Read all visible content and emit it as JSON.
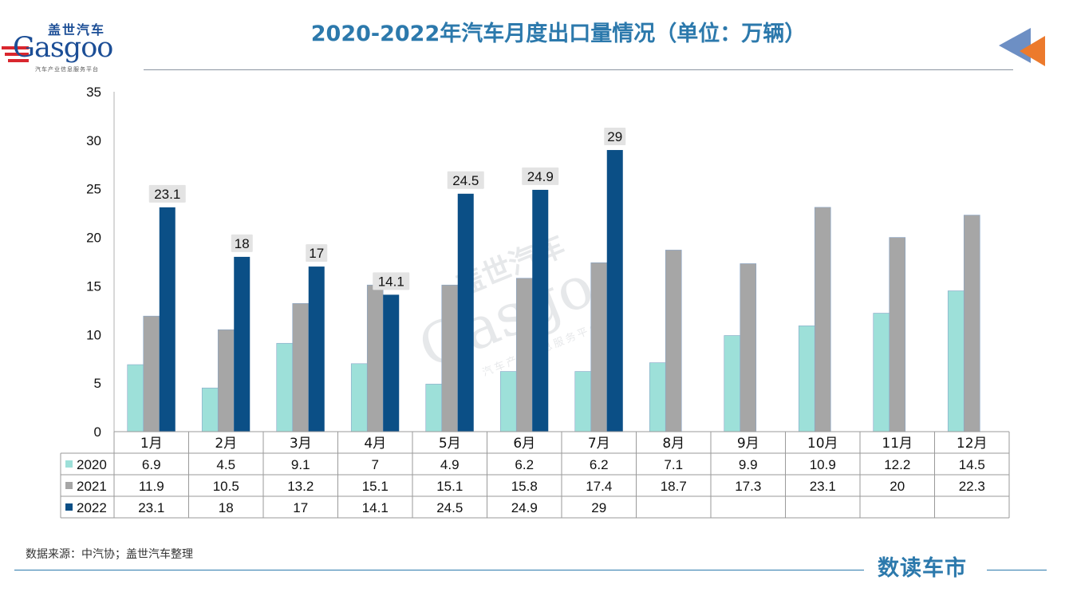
{
  "header": {
    "title": "2020-2022年汽车月度出口量情况（单位：万辆）",
    "logo_cn": "盖世汽车",
    "logo_en": "Gasgoo",
    "logo_sub": "汽车产业信息服务平台"
  },
  "watermark": {
    "cn": "盖世汽车",
    "en": "Gasgoo",
    "sub": "汽车产业信息服务平台"
  },
  "footer": {
    "source": "数据来源：中汽协；盖世汽车整理",
    "brand": "数读车市"
  },
  "colors": {
    "s2020": "#9de0d9",
    "s2021": "#a6a6a6",
    "s2022": "#0b4f86",
    "title": "#2c79ac",
    "logo": "#1c4e96",
    "arrow_blue": "#6d8fc4",
    "arrow_orange": "#ec7a2c"
  },
  "chart_data": {
    "type": "bar",
    "title": "2020-2022年汽车月度出口量情况（单位：万辆）",
    "unit": "万辆",
    "categories": [
      "1月",
      "2月",
      "3月",
      "4月",
      "5月",
      "6月",
      "7月",
      "8月",
      "9月",
      "10月",
      "11月",
      "12月"
    ],
    "series": [
      {
        "name": "2020",
        "values": [
          6.9,
          4.5,
          9.1,
          7,
          4.9,
          6.2,
          6.2,
          7.1,
          9.9,
          10.9,
          12.2,
          14.5
        ]
      },
      {
        "name": "2021",
        "values": [
          11.9,
          10.5,
          13.2,
          15.1,
          15.1,
          15.8,
          17.4,
          18.7,
          17.3,
          23.1,
          20,
          22.3
        ]
      },
      {
        "name": "2022",
        "values": [
          23.1,
          18,
          17,
          14.1,
          24.5,
          24.9,
          29,
          null,
          null,
          null,
          null,
          null
        ]
      }
    ],
    "labeled_series": "2022",
    "ylim": [
      0,
      35
    ],
    "yticks": [
      0,
      5,
      10,
      15,
      20,
      25,
      30,
      35
    ],
    "data_table": true,
    "grid": false
  }
}
